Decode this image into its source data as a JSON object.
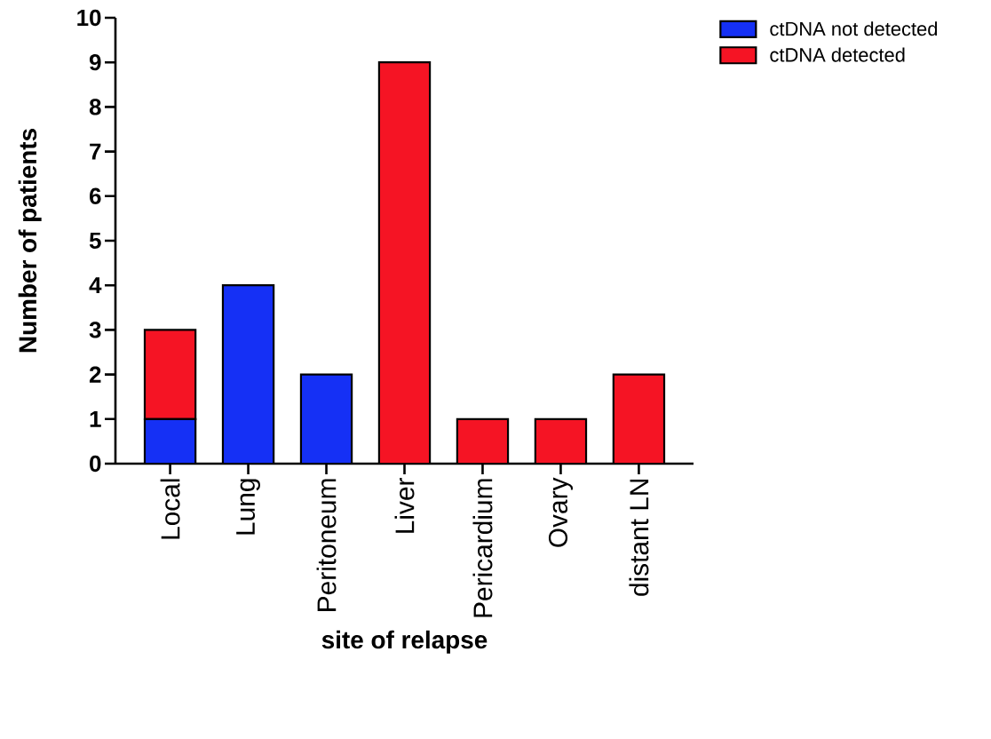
{
  "chart_data": {
    "type": "bar",
    "stacked": true,
    "xlabel": "site of relapse",
    "ylabel": "Number of patients",
    "categories": [
      "Local",
      "Lung",
      "Peritoneum",
      "Liver",
      "Pericardium",
      "Ovary",
      "distant LN"
    ],
    "series": [
      {
        "name": "ctDNA not detected",
        "color": "#1530f5",
        "values": [
          1,
          4,
          2,
          0,
          0,
          0,
          0
        ]
      },
      {
        "name": "ctDNA detected",
        "color": "#f51424",
        "values": [
          2,
          0,
          0,
          9,
          1,
          1,
          2
        ]
      }
    ],
    "ylim": [
      0,
      10
    ],
    "yticks": [
      0,
      1,
      2,
      3,
      4,
      5,
      6,
      7,
      8,
      9,
      10
    ],
    "grid": false,
    "legend": "top right"
  }
}
